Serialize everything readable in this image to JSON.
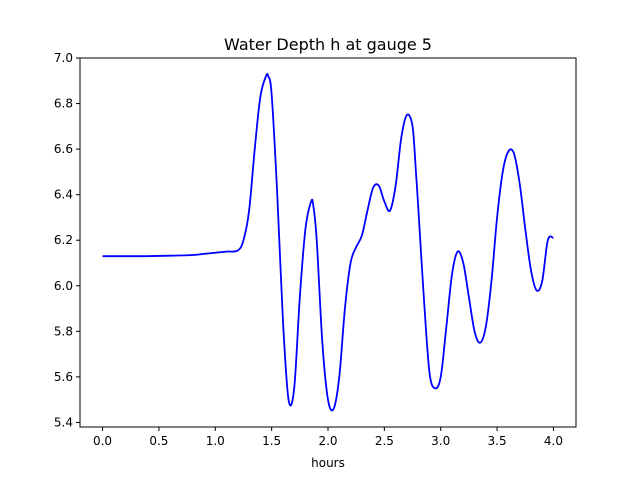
{
  "chart_data": {
    "type": "line",
    "title": "Water Depth h at gauge 5",
    "xlabel": "hours",
    "ylabel": "",
    "xlim": [
      -0.2,
      4.2
    ],
    "ylim": [
      5.38,
      7.0
    ],
    "xticks": [
      0.0,
      0.5,
      1.0,
      1.5,
      2.0,
      2.5,
      3.0,
      3.5,
      4.0
    ],
    "xtick_labels": [
      "0.0",
      "0.5",
      "1.0",
      "1.5",
      "2.0",
      "2.5",
      "3.0",
      "3.5",
      "4.0"
    ],
    "yticks": [
      5.4,
      5.6,
      5.8,
      6.0,
      6.2,
      6.4,
      6.6,
      6.8,
      7.0
    ],
    "ytick_labels": [
      "5.4",
      "5.6",
      "5.8",
      "6.0",
      "6.2",
      "6.4",
      "6.6",
      "6.8",
      "7.0"
    ],
    "grid": false,
    "series": [
      {
        "color": "#0000ff",
        "x": [
          0.0,
          0.2,
          0.4,
          0.6,
          0.8,
          0.9,
          1.0,
          1.1,
          1.2,
          1.25,
          1.3,
          1.35,
          1.4,
          1.45,
          1.47,
          1.5,
          1.55,
          1.6,
          1.65,
          1.7,
          1.75,
          1.8,
          1.85,
          1.87,
          1.9,
          1.95,
          2.0,
          2.05,
          2.1,
          2.15,
          2.2,
          2.25,
          2.3,
          2.35,
          2.4,
          2.45,
          2.5,
          2.55,
          2.6,
          2.65,
          2.7,
          2.75,
          2.78,
          2.8,
          2.85,
          2.9,
          2.95,
          3.0,
          3.05,
          3.1,
          3.15,
          3.2,
          3.25,
          3.3,
          3.35,
          3.4,
          3.45,
          3.5,
          3.55,
          3.6,
          3.65,
          3.7,
          3.75,
          3.8,
          3.85,
          3.9,
          3.95,
          4.0
        ],
        "y": [
          6.13,
          6.13,
          6.13,
          6.132,
          6.135,
          6.14,
          6.145,
          6.15,
          6.155,
          6.2,
          6.33,
          6.6,
          6.83,
          6.92,
          6.92,
          6.84,
          6.4,
          5.85,
          5.5,
          5.55,
          5.95,
          6.25,
          6.37,
          6.35,
          6.2,
          5.75,
          5.5,
          5.46,
          5.6,
          5.9,
          6.1,
          6.17,
          6.22,
          6.33,
          6.43,
          6.44,
          6.37,
          6.33,
          6.44,
          6.65,
          6.75,
          6.7,
          6.5,
          6.35,
          5.95,
          5.62,
          5.55,
          5.6,
          5.82,
          6.05,
          6.15,
          6.1,
          5.95,
          5.8,
          5.75,
          5.82,
          6.02,
          6.3,
          6.5,
          6.59,
          6.58,
          6.45,
          6.25,
          6.07,
          5.98,
          6.02,
          6.2,
          6.21
        ]
      }
    ]
  }
}
